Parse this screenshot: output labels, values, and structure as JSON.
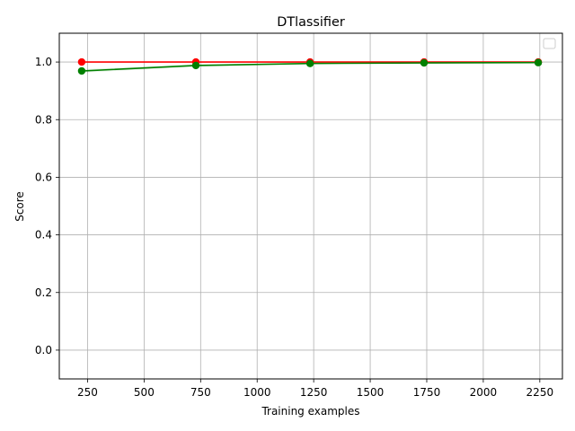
{
  "chart_data": {
    "type": "line",
    "title": "DTlassifier",
    "xlabel": "Training examples",
    "ylabel": "Score",
    "xlim": [
      125,
      2350
    ],
    "ylim": [
      -0.1,
      1.1
    ],
    "xticks": [
      250,
      500,
      750,
      1000,
      1250,
      1500,
      1750,
      2000,
      2250
    ],
    "yticks": [
      0.0,
      0.2,
      0.4,
      0.6,
      0.8,
      1.0
    ],
    "grid": true,
    "legend": "top-right, empty",
    "x": [
      224,
      729,
      1234,
      1738,
      2243
    ],
    "series": [
      {
        "color": "#ff0000",
        "values": [
          1.0,
          1.0,
          1.0,
          1.0,
          1.0
        ],
        "band": [
          0.0,
          0.0,
          0.0,
          0.0,
          0.0
        ]
      },
      {
        "color": "#008000",
        "values": [
          0.969,
          0.988,
          0.995,
          0.997,
          0.998
        ],
        "band": [
          0.006,
          0.004,
          0.002,
          0.001,
          0.001
        ]
      }
    ]
  }
}
